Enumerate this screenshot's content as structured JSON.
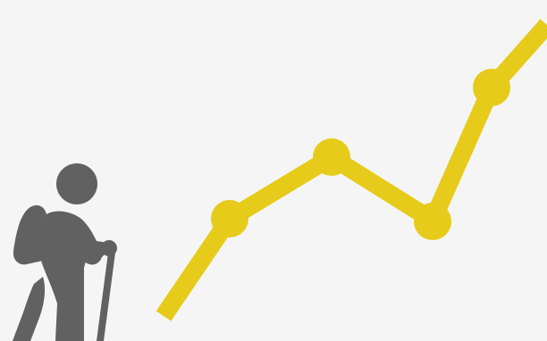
{
  "colors": {
    "background": "#f5f5f5",
    "trend": "#e6cb1a",
    "hiker": "#616161"
  },
  "illustration": {
    "icons": [
      "hiker-icon",
      "trend-line-icon"
    ]
  }
}
